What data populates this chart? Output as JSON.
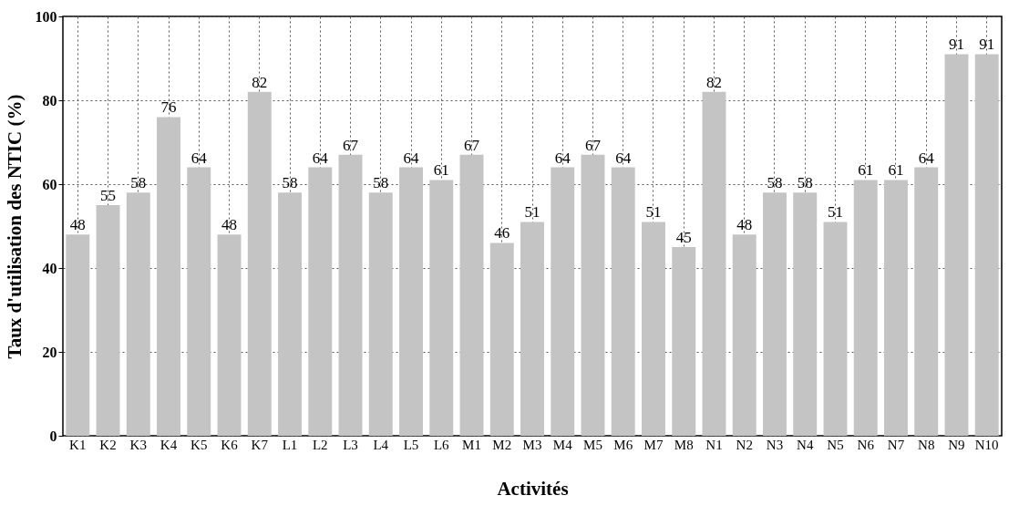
{
  "chart_data": {
    "type": "bar",
    "xlabel": "Activités",
    "ylabel": "Taux d'utilisation des NTIC (%)",
    "categories": [
      "K1",
      "K2",
      "K3",
      "K4",
      "K5",
      "K6",
      "K7",
      "L1",
      "L2",
      "L3",
      "L4",
      "L5",
      "L6",
      "M1",
      "M2",
      "M3",
      "M4",
      "M5",
      "M6",
      "M7",
      "M8",
      "N1",
      "N2",
      "N3",
      "N4",
      "N5",
      "N6",
      "N7",
      "N8",
      "N9",
      "N10"
    ],
    "values": [
      48,
      55,
      58,
      76,
      64,
      48,
      82,
      58,
      64,
      67,
      58,
      64,
      61,
      67,
      46,
      51,
      64,
      67,
      64,
      51,
      45,
      82,
      48,
      58,
      58,
      51,
      61,
      61,
      64,
      91,
      91
    ],
    "color": "#c4c4c4",
    "ylim": [
      0,
      100
    ],
    "yticks": [
      0,
      20,
      40,
      60,
      80,
      100
    ],
    "grid": true,
    "data_labels": true
  }
}
